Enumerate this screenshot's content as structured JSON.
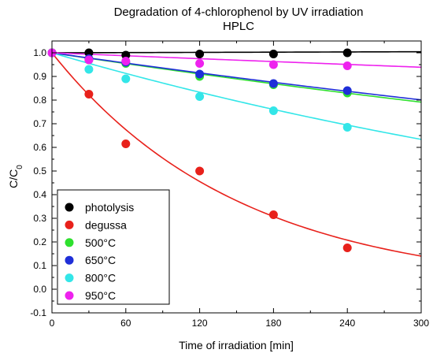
{
  "chart_data": {
    "type": "scatter",
    "title": "Degradation of 4-chlorophenol by UV irradiation",
    "subtitle": "HPLC",
    "xlabel": "Time of irradiation [min]",
    "ylabel_main": "C/C",
    "ylabel_sub": "0",
    "xlim": [
      0,
      300
    ],
    "ylim": [
      -0.1,
      1.05
    ],
    "xticks": [
      0,
      60,
      120,
      180,
      240,
      300
    ],
    "yticks": [
      -0.1,
      0.0,
      0.1,
      0.2,
      0.3,
      0.4,
      0.5,
      0.6,
      0.7,
      0.8,
      0.9,
      1.0
    ],
    "xtick_labels": [
      "0",
      "60",
      "120",
      "180",
      "240",
      "300"
    ],
    "ytick_labels": [
      "-0.1",
      "0.0",
      "0.1",
      "0.2",
      "0.3",
      "0.4",
      "0.5",
      "0.6",
      "0.7",
      "0.8",
      "0.9",
      "1.0"
    ],
    "grid": false,
    "legend_position": "bottom-left",
    "series": [
      {
        "name": "photolysis",
        "color": "#000000",
        "x": [
          0,
          30,
          60,
          120,
          180,
          240
        ],
        "y": [
          1.0,
          1.0,
          0.99,
          0.995,
          0.995,
          1.0
        ],
        "fit_k": -1.5e-05
      },
      {
        "name": "degussa",
        "color": "#e8211b",
        "x": [
          0,
          30,
          60,
          120,
          180,
          240
        ],
        "y": [
          1.0,
          0.825,
          0.615,
          0.5,
          0.315,
          0.175
        ],
        "fit_k": 0.00655
      },
      {
        "name": "500°C",
        "color": "#2ee02e",
        "x": [
          0,
          30,
          60,
          120,
          180,
          240
        ],
        "y": [
          1.0,
          0.97,
          0.955,
          0.9,
          0.865,
          0.83
        ],
        "fit_k": 0.00078
      },
      {
        "name": "650°C",
        "color": "#1f2fd8",
        "x": [
          0,
          30,
          60,
          120,
          180,
          240
        ],
        "y": [
          1.0,
          0.975,
          0.96,
          0.91,
          0.87,
          0.84
        ],
        "fit_k": 0.00074
      },
      {
        "name": "800°C",
        "color": "#33e6e8",
        "x": [
          0,
          30,
          60,
          120,
          180,
          240
        ],
        "y": [
          1.0,
          0.93,
          0.89,
          0.815,
          0.755,
          0.685
        ],
        "fit_k": 0.00152
      },
      {
        "name": "950°C",
        "color": "#ee22ee",
        "x": [
          0,
          30,
          60,
          120,
          180,
          240
        ],
        "y": [
          1.0,
          0.97,
          0.965,
          0.955,
          0.95,
          0.945
        ],
        "fit_k": 0.00021
      }
    ]
  }
}
